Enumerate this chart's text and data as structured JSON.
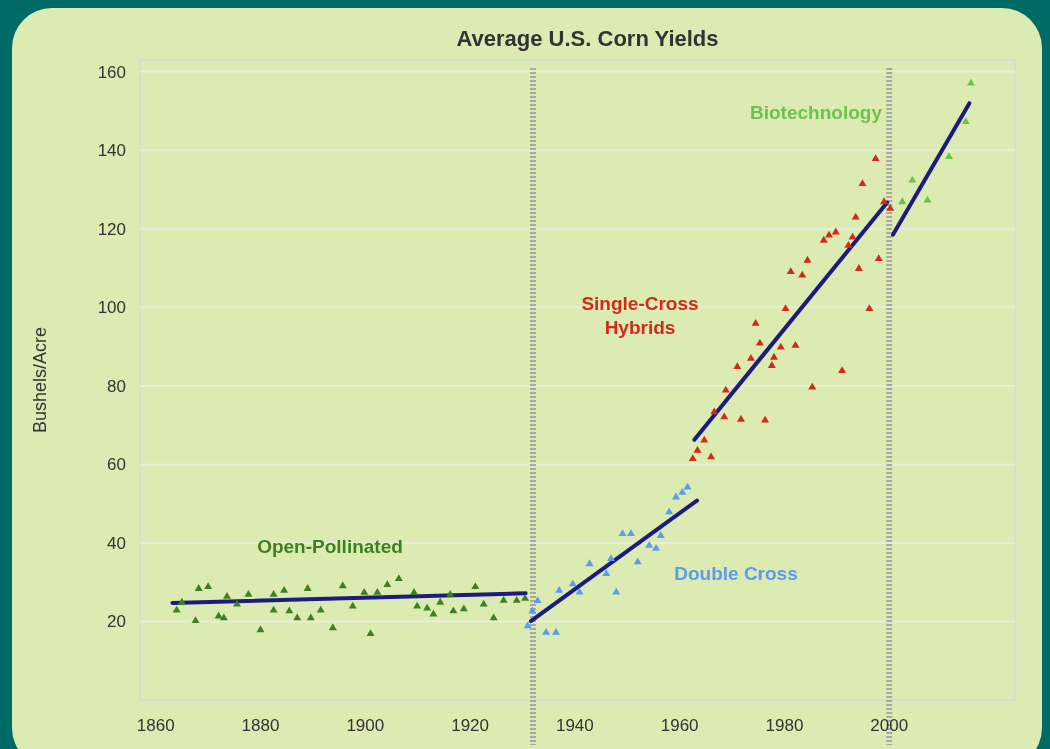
{
  "chart_data": {
    "type": "scatter",
    "title": "Average U.S. Corn Yields",
    "ylabel": "Bushels/Acre",
    "xlim": [
      1857,
      2024
    ],
    "xticks": [
      1860,
      1880,
      1900,
      1920,
      1940,
      1960,
      1980,
      2000
    ],
    "ylim": [
      0,
      163
    ],
    "yticks": [
      20,
      40,
      60,
      80,
      100,
      120,
      140,
      160
    ],
    "grid": "y",
    "marker": "triangle",
    "ref_lines": [
      {
        "axis": "x",
        "value": 1932,
        "label": null,
        "color": "#a8a8a8",
        "line_style": "dotted"
      },
      {
        "axis": "x",
        "value": 2000,
        "label": null,
        "color": "#a8a8a8",
        "line_style": "dotted"
      }
    ],
    "series": [
      {
        "name": "Open-Pollinated",
        "color": "#3f7f22",
        "x": [
          1864,
          1865,
          1867.6,
          1868.2,
          1870,
          1872,
          1873,
          1873.6,
          1875.5,
          1877.7,
          1880,
          1882.5,
          1882.5,
          1884.5,
          1885.5,
          1887,
          1889,
          1889.6,
          1891.5,
          1893.8,
          1895.7,
          1897.6,
          1899.8,
          1901,
          1902.3,
          1904.2,
          1906.4,
          1909.3,
          1909.9,
          1911.8,
          1913,
          1914.3,
          1916.2,
          1916.8,
          1918.8,
          1921,
          1922.6,
          1924.5,
          1926.4,
          1928.9,
          1930.5
        ],
        "values": [
          23,
          25,
          20.3,
          28.5,
          29,
          21.5,
          21,
          26.5,
          24.5,
          27,
          18,
          27,
          23,
          28,
          22.8,
          21,
          28.5,
          21,
          23,
          18.5,
          29.2,
          24,
          27.5,
          17,
          27.5,
          29.5,
          31,
          27.5,
          24,
          23.5,
          22,
          25,
          27,
          22.8,
          23.3,
          29,
          24.5,
          21,
          25.5,
          25.5,
          26
        ]
      },
      {
        "type": "line",
        "marker": "none",
        "color": "#1c1c7e",
        "x": [
          1863.2,
          1930.6
        ],
        "values": [
          24.7,
          27.2
        ]
      },
      {
        "name": "Double Cross",
        "color": "#5c9cee",
        "x": [
          1931,
          1931.9,
          1932.9,
          1934.5,
          1936.4,
          1937,
          1939.6,
          1940.9,
          1942.8,
          1946,
          1946.9,
          1947.9,
          1949.1,
          1950.7,
          1952,
          1954.2,
          1955.5,
          1956.4,
          1958,
          1959.3,
          1960.5,
          1961.5
        ],
        "values": [
          19,
          22.8,
          25.4,
          17.3,
          17.3,
          28,
          29.7,
          27.6,
          34.8,
          32.3,
          36.1,
          27.6,
          42.5,
          42.5,
          35.3,
          39.5,
          38.7,
          42,
          48,
          51.8,
          53,
          54.3
        ]
      },
      {
        "type": "line",
        "marker": "none",
        "color": "#1c1c7e",
        "x": [
          1931.6,
          1963.3
        ],
        "values": [
          20.1,
          50.8
        ]
      },
      {
        "name": "Single-Cross Hybrids",
        "color": "#d22a1c",
        "x": [
          1962.5,
          1963.4,
          1964.7,
          1966,
          1966.6,
          1968.5,
          1968.8,
          1971,
          1971.7,
          1973.6,
          1974.5,
          1975.3,
          1976.3,
          1977.6,
          1978,
          1979.3,
          1980.2,
          1981.2,
          1982.1,
          1983.4,
          1984.4,
          1985.3,
          1987.5,
          1988.5,
          1989.8,
          1991,
          1992.2,
          1993,
          1993.6,
          1994.2,
          1994.9,
          1996.2,
          1997.4,
          1998,
          1999,
          2000.2
        ],
        "values": [
          61.6,
          63.7,
          66.3,
          62,
          73.5,
          72.2,
          79,
          85,
          71.6,
          87.1,
          96,
          91,
          71.4,
          85.3,
          87.4,
          90,
          99.8,
          109.2,
          90.4,
          108.3,
          112.1,
          79.8,
          117.2,
          118.5,
          119.3,
          84,
          115.9,
          118,
          123.1,
          110,
          131.6,
          99.8,
          138,
          112.5,
          127,
          125.3
        ]
      },
      {
        "type": "line",
        "marker": "none",
        "color": "#1c1c7e",
        "x": [
          1962.8,
          1999.6
        ],
        "values": [
          66.3,
          126.7
        ]
      },
      {
        "name": "Biotechnology",
        "color": "#6cc24a",
        "x": [
          2002.5,
          2004.4,
          2007.3,
          2011.4,
          2014.6,
          2015.6
        ],
        "values": [
          127,
          132.5,
          127.4,
          138.5,
          147.4,
          157.2
        ]
      },
      {
        "type": "line",
        "marker": "none",
        "color": "#1c1c7e",
        "x": [
          2000.7,
          2015.3
        ],
        "values": [
          118.5,
          152
        ]
      }
    ]
  }
}
